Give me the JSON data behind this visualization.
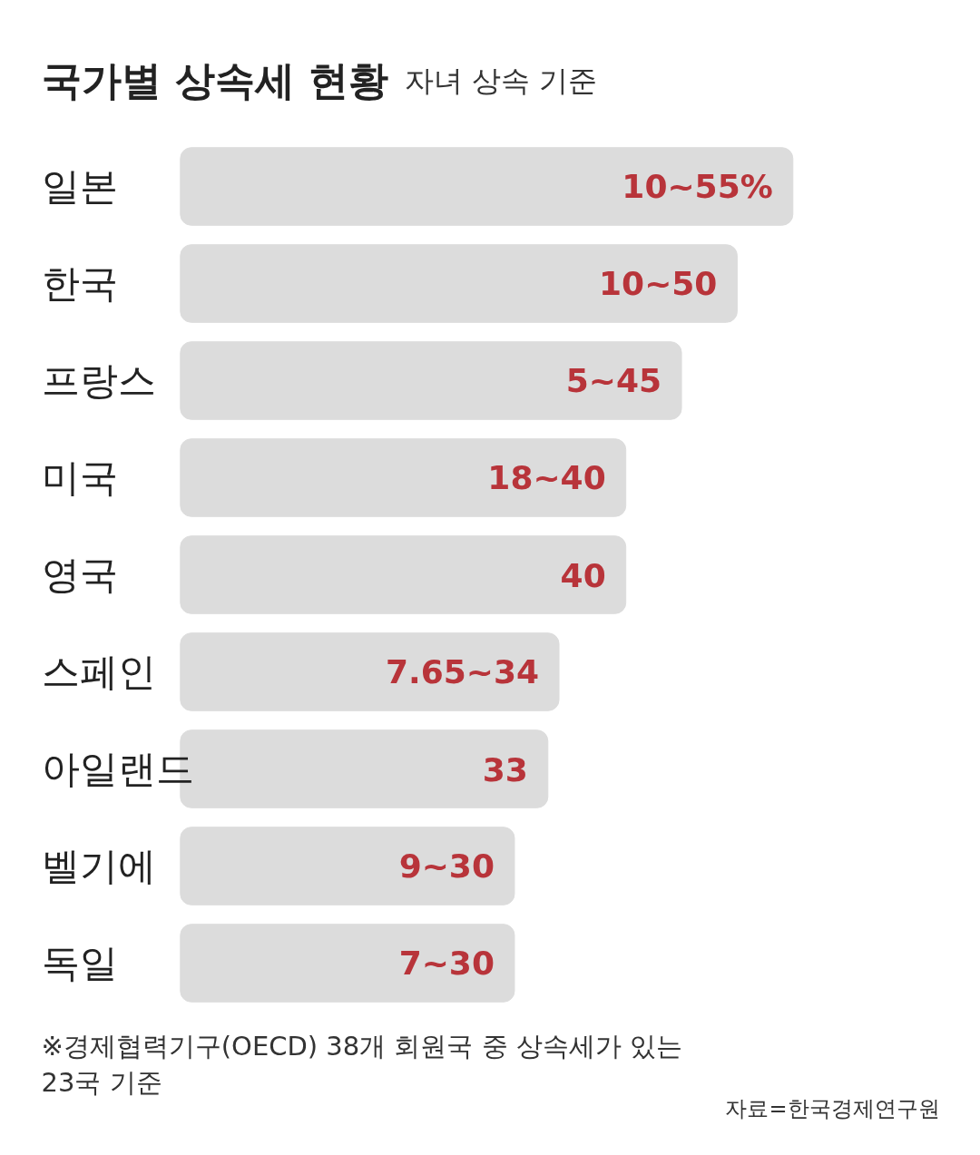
{
  "chart_data": {
    "type": "bar",
    "orientation": "horizontal",
    "title": "국가별 상속세 현황",
    "subtitle": "자녀 상속 기준",
    "categories": [
      "일본",
      "한국",
      "프랑스",
      "미국",
      "영국",
      "스페인",
      "아일랜드",
      "벨기에",
      "독일"
    ],
    "values": [
      55,
      50,
      45,
      40,
      40,
      34,
      33,
      30,
      30
    ],
    "value_labels": [
      "10~55%",
      "10~50",
      "5~45",
      "18~40",
      "40",
      "7.65~34",
      "33",
      "9~30",
      "7~30"
    ],
    "color": "#dcdcdc",
    "annotations": [
      "※경제협력기구(OECD) 38개 회원국 중 상속세가 있는\n 23국 기준",
      "자료=한국경제연구원"
    ]
  }
}
